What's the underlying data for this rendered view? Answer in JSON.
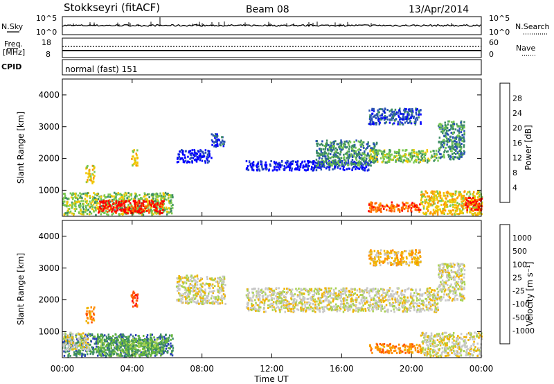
{
  "header": {
    "title": "Stokkseyri (fitACF)",
    "beam": "Beam 08",
    "date": "13/Apr/2014"
  },
  "top_panel": {
    "left_label": "N.Sky",
    "right_label": "N.Search",
    "left_ticks": [
      "10^5",
      "10^0"
    ],
    "right_ticks": [
      "10^5",
      "10^0"
    ]
  },
  "freq_panel": {
    "left_label_1": "Freq.",
    "left_label_2": "[MHz]",
    "left_ticks": [
      "18",
      "8"
    ],
    "right_ticks": [
      "60",
      "0"
    ],
    "right_label": "Nave"
  },
  "cpid": {
    "label": "CPID",
    "value": "normal (fast) 151"
  },
  "chart_data": [
    {
      "type": "heatmap",
      "name": "power",
      "ylabel": "Slant Range [km]",
      "ylim": [
        180,
        4500
      ],
      "yticks": [
        "1000",
        "2000",
        "3000",
        "4000"
      ],
      "xlim": [
        0,
        24
      ],
      "colorbar_label": "Power [dB]",
      "colorbar_ticks": [
        "4",
        "8",
        "12",
        "16",
        "20",
        "24",
        "28"
      ],
      "colors": [
        "#0000ff",
        "#2850b4",
        "#3c8c64",
        "#78c850",
        "#f0c800",
        "#ff9600",
        "#ff6400",
        "#ff0000"
      ],
      "regions": [
        {
          "t0": 0.0,
          "t1": 6.3,
          "r0": 250,
          "r1": 950,
          "level": 3
        },
        {
          "t0": 2.0,
          "t1": 5.8,
          "r0": 300,
          "r1": 700,
          "level": 7
        },
        {
          "t0": 1.3,
          "t1": 1.8,
          "r0": 1250,
          "r1": 1800,
          "level": 4
        },
        {
          "t0": 3.9,
          "t1": 4.3,
          "r0": 1800,
          "r1": 2300,
          "level": 4
        },
        {
          "t0": 6.5,
          "t1": 8.5,
          "r0": 1900,
          "r1": 2300,
          "level": 0
        },
        {
          "t0": 8.5,
          "t1": 9.3,
          "r0": 2400,
          "r1": 2800,
          "level": 1
        },
        {
          "t0": 10.5,
          "t1": 17.5,
          "r0": 1650,
          "r1": 1950,
          "level": 0
        },
        {
          "t0": 14.5,
          "t1": 18.0,
          "r0": 1800,
          "r1": 2600,
          "level": 2
        },
        {
          "t0": 17.5,
          "t1": 21.5,
          "r0": 1900,
          "r1": 2300,
          "level": 3
        },
        {
          "t0": 17.5,
          "t1": 20.5,
          "r0": 3100,
          "r1": 3600,
          "level": 1
        },
        {
          "t0": 21.5,
          "t1": 23.0,
          "r0": 2000,
          "r1": 3200,
          "level": 2
        },
        {
          "t0": 17.5,
          "t1": 20.5,
          "r0": 350,
          "r1": 650,
          "level": 6
        },
        {
          "t0": 20.5,
          "t1": 24.0,
          "r0": 250,
          "r1": 1000,
          "level": 4
        },
        {
          "t0": 23.0,
          "t1": 24.0,
          "r0": 400,
          "r1": 800,
          "level": 7
        }
      ]
    },
    {
      "type": "heatmap",
      "name": "velocity",
      "ylabel": "Slant Range [km]",
      "ylim": [
        180,
        4500
      ],
      "yticks": [
        "1000",
        "2000",
        "3000",
        "4000"
      ],
      "xlim": [
        0,
        24
      ],
      "xticks": [
        "00:00",
        "04:00",
        "08:00",
        "12:00",
        "16:00",
        "20:00",
        "00:00"
      ],
      "xlabel": "Time UT",
      "colorbar_label": "Velocity [m s⁻¹]",
      "colorbar_ticks": [
        "1000",
        "500",
        "100",
        "25",
        "-25",
        "-100",
        "-500",
        "-1000"
      ],
      "colors": [
        "#2840b4",
        "#3c8c64",
        "#64b43c",
        "#aad250",
        "#c8c8c8",
        "#f0b400",
        "#ff8c00",
        "#ff5000",
        "#ff0000"
      ],
      "regions": [
        {
          "t0": 0.0,
          "t1": 6.3,
          "r0": 250,
          "r1": 950,
          "level": 1
        },
        {
          "t0": 2.0,
          "t1": 5.8,
          "r0": 250,
          "r1": 800,
          "level": 2
        },
        {
          "t0": 0.0,
          "t1": 1.5,
          "r0": 450,
          "r1": 1000,
          "level": 4
        },
        {
          "t0": 1.3,
          "t1": 1.8,
          "r0": 1300,
          "r1": 1800,
          "level": 6
        },
        {
          "t0": 3.9,
          "t1": 4.3,
          "r0": 1800,
          "r1": 2300,
          "level": 7
        },
        {
          "t0": 6.5,
          "t1": 9.3,
          "r0": 1900,
          "r1": 2800,
          "level": 4
        },
        {
          "t0": 10.5,
          "t1": 21.5,
          "r0": 1650,
          "r1": 2400,
          "level": 4
        },
        {
          "t0": 17.5,
          "t1": 20.5,
          "r0": 3100,
          "r1": 3600,
          "level": 5
        },
        {
          "t0": 17.5,
          "t1": 20.5,
          "r0": 350,
          "r1": 650,
          "level": 6
        },
        {
          "t0": 20.5,
          "t1": 24.0,
          "r0": 250,
          "r1": 1000,
          "level": 4
        },
        {
          "t0": 21.5,
          "t1": 23.0,
          "r0": 2000,
          "r1": 3200,
          "level": 4
        }
      ]
    }
  ]
}
